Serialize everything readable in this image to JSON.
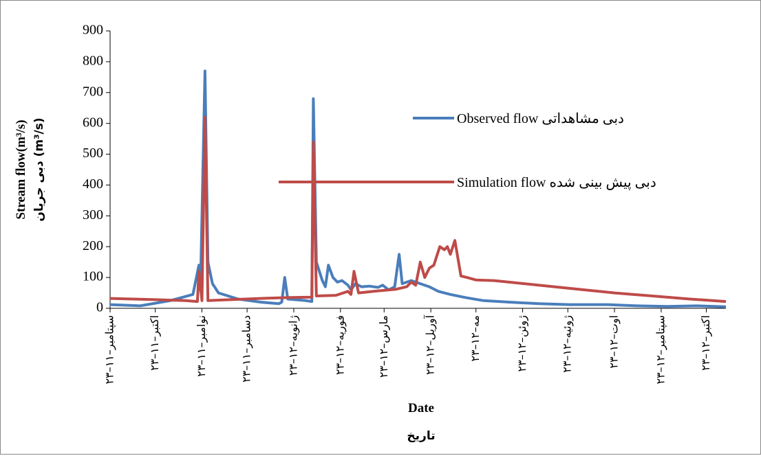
{
  "chart_data": {
    "type": "line",
    "x_label": "Date",
    "x_label_fa": "تاریخ",
    "y_label": "Stream flow(m³/s)",
    "y_label_fa": "دبی جریان (m³/s)",
    "xlim": [
      0,
      409
    ],
    "xticks": [
      {
        "value": 0,
        "label": "۲۳–سپتامبر–۱۱"
      },
      {
        "value": 30,
        "label": "۲۳–اکتبر–۱۱"
      },
      {
        "value": 61,
        "label": "۲۳–نوامبر–۱۱"
      },
      {
        "value": 91,
        "label": "۲۳–دسامبر–۱۱"
      },
      {
        "value": 122,
        "label": "۲۳–ژانویه–۱۲"
      },
      {
        "value": 153,
        "label": "۲۳–فوریه–۱۲"
      },
      {
        "value": 182,
        "label": "۲۳–مارس–۱۲"
      },
      {
        "value": 213,
        "label": "۲۳–آوریل–۱۲"
      },
      {
        "value": 243,
        "label": "۲۳–مه–۱۲"
      },
      {
        "value": 274,
        "label": "۲۳–ژوئن–۱۲"
      },
      {
        "value": 304,
        "label": "۲۳–ژوئیه–۱۲"
      },
      {
        "value": 335,
        "label": "۲۳–اوت–۱۲"
      },
      {
        "value": 366,
        "label": "۲۳–سپتامبر–۱۲"
      },
      {
        "value": 396,
        "label": "۲۳–اکتبر–۱۲"
      }
    ],
    "ylim": [
      0,
      900
    ],
    "yticks": [
      0,
      100,
      200,
      300,
      400,
      500,
      600,
      700,
      800,
      900
    ],
    "series": [
      {
        "name": "Observed flow دبی مشاهداتی",
        "color": "#4a7ebb",
        "x": [
          0,
          20,
          40,
          55,
          59,
          60,
          63,
          65,
          68,
          72,
          85,
          100,
          112,
          114,
          116,
          118,
          130,
          134,
          135,
          137,
          141,
          143,
          145,
          148,
          151,
          154,
          158,
          160,
          163,
          167,
          172,
          178,
          181,
          185,
          189,
          192,
          194,
          200,
          206,
          212,
          218,
          226,
          236,
          248,
          265,
          285,
          305,
          330,
          350,
          370,
          390,
          409
        ],
        "values": [
          12,
          8,
          25,
          45,
          140,
          60,
          770,
          150,
          80,
          50,
          30,
          20,
          15,
          20,
          100,
          30,
          25,
          22,
          680,
          150,
          90,
          70,
          140,
          100,
          85,
          90,
          75,
          60,
          80,
          70,
          72,
          68,
          75,
          60,
          70,
          175,
          80,
          90,
          80,
          70,
          55,
          45,
          35,
          25,
          20,
          15,
          12,
          12,
          8,
          6,
          8,
          5
        ]
      },
      {
        "name": "Simulation flow دبی پیش بینی شده",
        "color": "#be4b48",
        "x": [
          0,
          30,
          50,
          58,
          59,
          61,
          63,
          65,
          80,
          100,
          120,
          134,
          135,
          137,
          150,
          158,
          160,
          162,
          165,
          175,
          190,
          197,
          200,
          203,
          206,
          209,
          212,
          215,
          219,
          222,
          224,
          226,
          229,
          233,
          237,
          243,
          255,
          275,
          295,
          315,
          335,
          360,
          385,
          409
        ],
        "values": [
          32,
          28,
          25,
          22,
          120,
          25,
          620,
          25,
          28,
          32,
          35,
          36,
          540,
          40,
          42,
          55,
          45,
          120,
          50,
          55,
          62,
          70,
          85,
          75,
          150,
          100,
          130,
          140,
          200,
          190,
          200,
          175,
          220,
          105,
          100,
          92,
          90,
          80,
          70,
          60,
          50,
          40,
          30,
          22
        ]
      }
    ]
  }
}
